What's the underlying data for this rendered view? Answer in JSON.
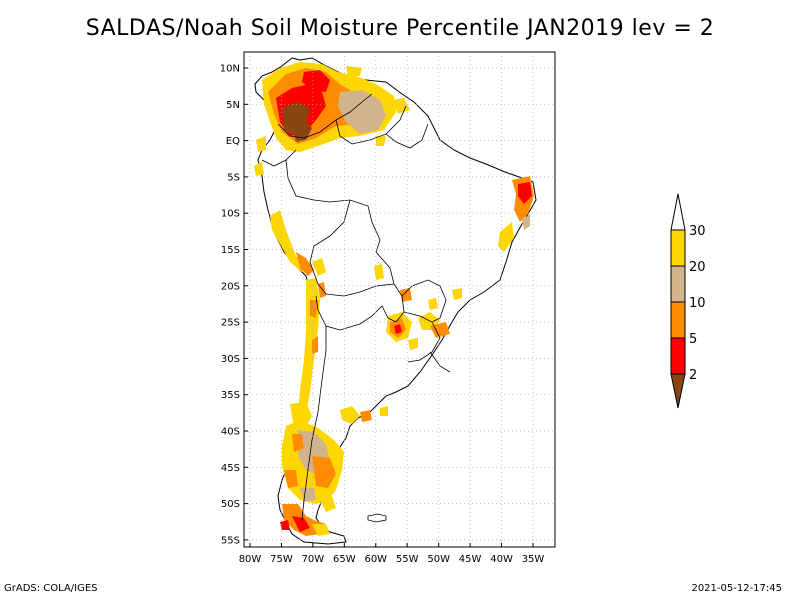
{
  "title": "SALDAS/Noah Soil Moisture Percentile JAN2019 lev = 2",
  "footer": {
    "left": "GrADS: COLA/IGES",
    "right": "2021-05-12-17:45"
  },
  "map": {
    "lat_labels": [
      "10N",
      "5N",
      "EQ",
      "5S",
      "10S",
      "15S",
      "20S",
      "25S",
      "30S",
      "35S",
      "40S",
      "45S",
      "50S",
      "55S"
    ],
    "lon_labels": [
      "80W",
      "75W",
      "70W",
      "65W",
      "60W",
      "55W",
      "50W",
      "45W",
      "40W",
      "35W"
    ],
    "grid": true,
    "region": "South America"
  },
  "colorbar": {
    "levels": [
      "2",
      "5",
      "10",
      "20",
      "30"
    ],
    "colors": [
      "#8b4513",
      "#ff0000",
      "#ff8c00",
      "#d2b48c",
      "#ffd700",
      "#ffffff"
    ]
  }
}
